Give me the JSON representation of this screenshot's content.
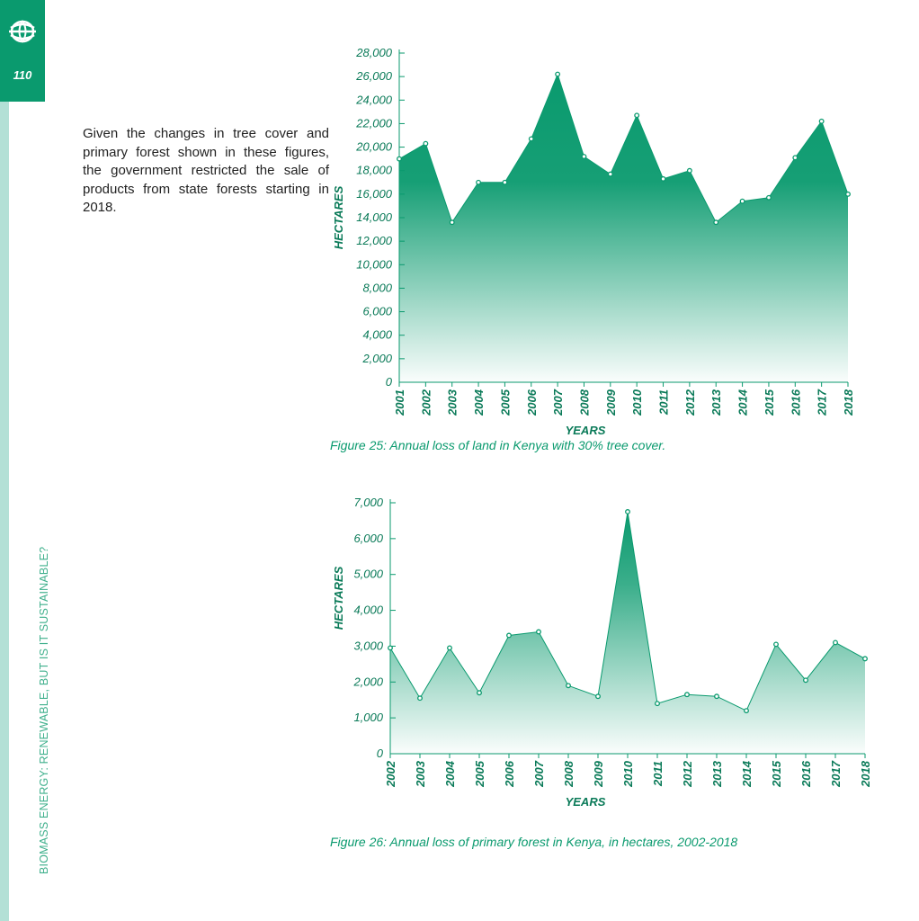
{
  "page": {
    "number": "110",
    "side_title": "BIOMASS ENERGY: RENEWABLE, BUT IS IT SUSTAINABLE?",
    "logo_icon": "globe-logo-icon",
    "accent_color": "#0a9a6e"
  },
  "body_text": "Given the changes in tree cover and primary forest shown in these figures, the government restricted the sale of products from state forests starting in 2018.",
  "chart_data": [
    {
      "type": "area",
      "title": "",
      "caption": "Figure 25: Annual loss of land in Kenya with 30% tree cover.",
      "xlabel": "YEARS",
      "ylabel": "HECTARES",
      "x": [
        "2001",
        "2002",
        "2003",
        "2004",
        "2005",
        "2006",
        "2007",
        "2008",
        "2009",
        "2010",
        "2011",
        "2012",
        "2013",
        "2014",
        "2015",
        "2016",
        "2017",
        "2018"
      ],
      "values": [
        19000,
        20300,
        13600,
        17000,
        17000,
        20700,
        26200,
        19200,
        17700,
        22700,
        17300,
        18000,
        13600,
        15400,
        15700,
        19100,
        22200,
        16000
      ],
      "yticks": [
        0,
        2000,
        4000,
        6000,
        8000,
        10000,
        12000,
        14000,
        16000,
        18000,
        20000,
        22000,
        24000,
        26000,
        28000
      ],
      "ytick_labels": [
        "0",
        "2,000",
        "4,000",
        "6,000",
        "8,000",
        "10,000",
        "12,000",
        "14,000",
        "16,000",
        "18,000",
        "20,000",
        "22,000",
        "24,000",
        "26,000",
        "28,000"
      ],
      "ylim": [
        0,
        28000
      ],
      "color": "#0a9a6e"
    },
    {
      "type": "area",
      "title": "",
      "caption": "Figure 26: Annual loss of primary forest in Kenya, in hectares, 2002-2018",
      "xlabel": "YEARS",
      "ylabel": "HECTARES",
      "x": [
        "2002",
        "2003",
        "2004",
        "2005",
        "2006",
        "2007",
        "2008",
        "2009",
        "2010",
        "2011",
        "2012",
        "2013",
        "2014",
        "2015",
        "2016",
        "2017",
        "2018"
      ],
      "values": [
        2950,
        1550,
        2950,
        1700,
        3300,
        3400,
        1900,
        1600,
        6750,
        1400,
        1650,
        1600,
        1200,
        3050,
        2050,
        3100,
        2650
      ],
      "yticks": [
        0,
        1000,
        2000,
        3000,
        4000,
        5000,
        6000,
        7000
      ],
      "ytick_labels": [
        "0",
        "1,000",
        "2,000",
        "3,000",
        "4,000",
        "5,000",
        "6,000",
        "7,000"
      ],
      "ylim": [
        0,
        7000
      ],
      "color": "#0a9a6e"
    }
  ]
}
